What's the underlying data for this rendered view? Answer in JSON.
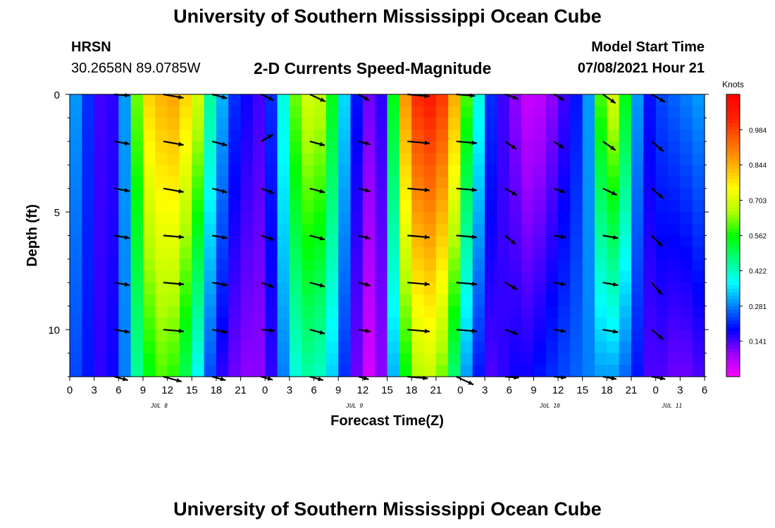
{
  "header": {
    "title": "University of Southern Mississippi Ocean Cube",
    "station": "HRSN",
    "coords": "30.2658N  89.0785W",
    "plot_title": "2-D Currents Speed-Magnitude",
    "model_label": "Model Start Time",
    "model_time": "07/08/2021 Hour 21"
  },
  "footer": {
    "title": "University of Southern Mississippi Ocean Cube"
  },
  "chart_data": {
    "type": "heatmap",
    "title": "2-D Currents Speed-Magnitude",
    "xlabel": "Forecast Time(Z)",
    "ylabel": "Depth (ft)",
    "x_range_hours": [
      0,
      78
    ],
    "y_range_ft": [
      0,
      12
    ],
    "x_tick_labels": [
      "0",
      "3",
      "6",
      "9",
      "12",
      "15",
      "18",
      "21",
      "0",
      "3",
      "6",
      "9",
      "12",
      "15",
      "18",
      "21",
      "0",
      "3",
      "6",
      "9",
      "12",
      "15",
      "18",
      "21",
      "0",
      "3",
      "6"
    ],
    "y_tick_labels": [
      "0",
      "5",
      "10"
    ],
    "y_tick_values": [
      0,
      5,
      10
    ],
    "date_labels": [
      {
        "label": "JUL 8",
        "hour": 11
      },
      {
        "label": "JUL 9",
        "hour": 35
      },
      {
        "label": "JUL 10",
        "hour": 59
      },
      {
        "label": "JUL 11",
        "hour": 74
      }
    ],
    "colorbar": {
      "unit": "Knots",
      "min": 0.0,
      "max": 1.125,
      "tick_labels": [
        "0.984",
        "0.844",
        "0.703",
        "0.562",
        "0.422",
        "0.281",
        "0.141"
      ],
      "tick_values": [
        0.984,
        0.844,
        0.703,
        0.562,
        0.422,
        0.281,
        0.141
      ],
      "colors": [
        "#ff00ff",
        "#9900ff",
        "#0000ff",
        "#0080ff",
        "#00ffff",
        "#00ff80",
        "#00ff00",
        "#b0ff00",
        "#ffff00",
        "#ffb000",
        "#ff6600",
        "#ff2000",
        "#ff0000"
      ]
    },
    "speed_profile": {
      "hours": [
        0,
        1.5,
        3,
        4.5,
        6,
        7.5,
        9,
        10.5,
        12,
        13.5,
        15,
        16.5,
        18,
        19.5,
        21,
        22.5,
        24,
        25.5,
        27,
        28.5,
        30,
        31.5,
        33,
        34.5,
        36,
        37.5,
        39,
        40.5,
        42,
        43.5,
        45,
        46.5,
        48,
        49.5,
        51,
        52.5,
        54,
        55.5,
        57,
        58.5,
        60,
        61.5,
        63,
        64.5,
        66,
        67.5,
        69,
        70.5,
        72,
        73.5,
        75,
        76.5,
        78
      ],
      "surface_knots": [
        0.3,
        0.22,
        0.15,
        0.16,
        0.3,
        0.62,
        0.8,
        0.84,
        0.86,
        0.8,
        0.7,
        0.45,
        0.32,
        0.22,
        0.18,
        0.15,
        0.22,
        0.4,
        0.62,
        0.7,
        0.68,
        0.55,
        0.35,
        0.2,
        0.12,
        0.16,
        0.55,
        0.88,
        1.02,
        1.05,
        1.0,
        0.85,
        0.6,
        0.4,
        0.22,
        0.15,
        0.1,
        0.05,
        0.06,
        0.1,
        0.15,
        0.2,
        0.3,
        0.6,
        0.7,
        0.55,
        0.3,
        0.2,
        0.24,
        0.26,
        0.28,
        0.3,
        0.34
      ],
      "bottom_knots": [
        0.24,
        0.2,
        0.16,
        0.18,
        0.28,
        0.45,
        0.55,
        0.6,
        0.58,
        0.5,
        0.38,
        0.24,
        0.16,
        0.12,
        0.1,
        0.1,
        0.16,
        0.28,
        0.4,
        0.44,
        0.42,
        0.34,
        0.22,
        0.12,
        0.04,
        0.1,
        0.32,
        0.55,
        0.66,
        0.68,
        0.62,
        0.48,
        0.3,
        0.2,
        0.14,
        0.16,
        0.18,
        0.18,
        0.2,
        0.22,
        0.24,
        0.26,
        0.28,
        0.3,
        0.3,
        0.26,
        0.2,
        0.14,
        0.14,
        0.12,
        0.12,
        0.14,
        0.16
      ]
    },
    "vectors": {
      "hours": [
        5.5,
        11.5,
        17.5,
        23.5,
        29.5,
        35.5,
        41.5,
        47.5,
        53.5,
        59.5,
        65.5,
        71.5
      ],
      "depths_ft": [
        0,
        2,
        4,
        6,
        8,
        10,
        12
      ],
      "angles_deg_from_east": [
        [
          -5,
          -10,
          -15,
          -25,
          -25,
          -30,
          -5,
          -5,
          -20,
          -30,
          -35,
          -30
        ],
        [
          -10,
          -10,
          -15,
          30,
          -15,
          -15,
          -5,
          -5,
          -35,
          -35,
          -35,
          -40
        ],
        [
          -10,
          -10,
          -15,
          -20,
          -15,
          -15,
          -5,
          -5,
          -30,
          -20,
          -25,
          -40
        ],
        [
          -10,
          -5,
          -10,
          -20,
          -15,
          -15,
          -5,
          -5,
          -40,
          -10,
          -10,
          -45
        ],
        [
          -10,
          -5,
          -10,
          -20,
          -15,
          -15,
          -5,
          -5,
          -30,
          -10,
          -10,
          -50
        ],
        [
          -10,
          -5,
          -10,
          -5,
          -15,
          -10,
          -5,
          -5,
          -20,
          -10,
          -10,
          -40
        ],
        [
          -15,
          -15,
          -15,
          -15,
          -15,
          -15,
          -5,
          -25,
          -5,
          -5,
          -10,
          -10
        ]
      ],
      "magnitudes_knots": [
        [
          0.5,
          0.8,
          0.5,
          0.4,
          0.6,
          0.3,
          0.9,
          0.7,
          0.4,
          0.3,
          0.5,
          0.5
        ],
        [
          0.5,
          0.8,
          0.5,
          0.4,
          0.5,
          0.3,
          0.9,
          0.8,
          0.4,
          0.3,
          0.5,
          0.5
        ],
        [
          0.5,
          0.8,
          0.5,
          0.4,
          0.5,
          0.3,
          0.9,
          0.8,
          0.4,
          0.3,
          0.5,
          0.5
        ],
        [
          0.5,
          0.8,
          0.5,
          0.4,
          0.5,
          0.3,
          0.9,
          0.8,
          0.4,
          0.3,
          0.5,
          0.5
        ],
        [
          0.5,
          0.8,
          0.5,
          0.4,
          0.5,
          0.3,
          0.9,
          0.8,
          0.4,
          0.3,
          0.5,
          0.5
        ],
        [
          0.5,
          0.8,
          0.5,
          0.4,
          0.5,
          0.3,
          0.9,
          0.8,
          0.4,
          0.3,
          0.5,
          0.5
        ],
        [
          0.4,
          0.7,
          0.4,
          0.3,
          0.4,
          0.2,
          0.8,
          0.7,
          0.4,
          0.3,
          0.4,
          0.4
        ]
      ]
    }
  }
}
